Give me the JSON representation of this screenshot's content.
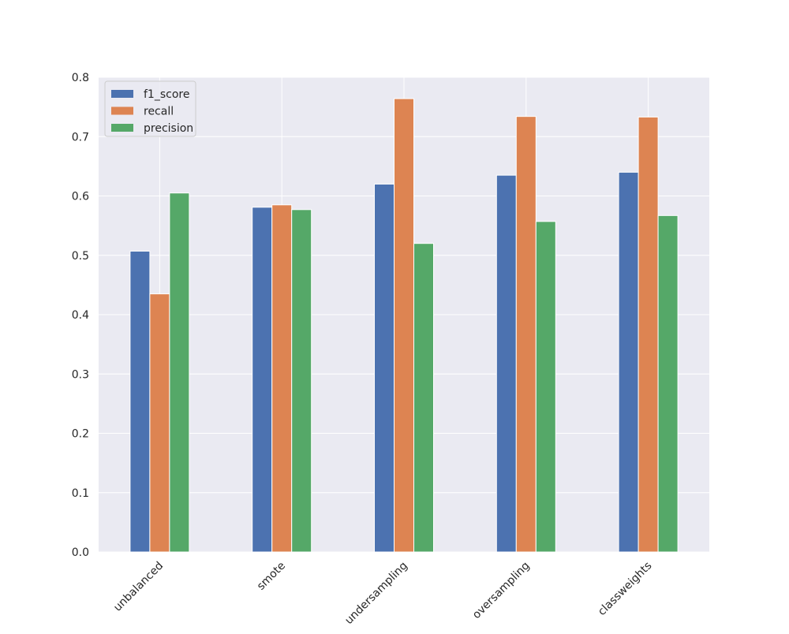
{
  "chart_data": {
    "type": "bar",
    "title": "",
    "xlabel": "",
    "ylabel": "",
    "categories": [
      "unbalanced",
      "smote",
      "undersampling",
      "oversampling",
      "classweights"
    ],
    "series": [
      {
        "name": "f1_score",
        "color": "#4C72B0",
        "values": [
          0.507,
          0.581,
          0.62,
          0.635,
          0.64
        ]
      },
      {
        "name": "recall",
        "color": "#DD8452",
        "values": [
          0.435,
          0.585,
          0.764,
          0.734,
          0.733
        ]
      },
      {
        "name": "precision",
        "color": "#55A868",
        "values": [
          0.605,
          0.577,
          0.52,
          0.557,
          0.567
        ]
      }
    ],
    "ylim": [
      0,
      0.8
    ],
    "yticks": [
      "0.0",
      "0.1",
      "0.2",
      "0.3",
      "0.4",
      "0.5",
      "0.6",
      "0.7",
      "0.8"
    ],
    "grid": true,
    "legend_position": "top-left",
    "background_color": "#EAEAF2",
    "grid_color": "#FFFFFF"
  }
}
